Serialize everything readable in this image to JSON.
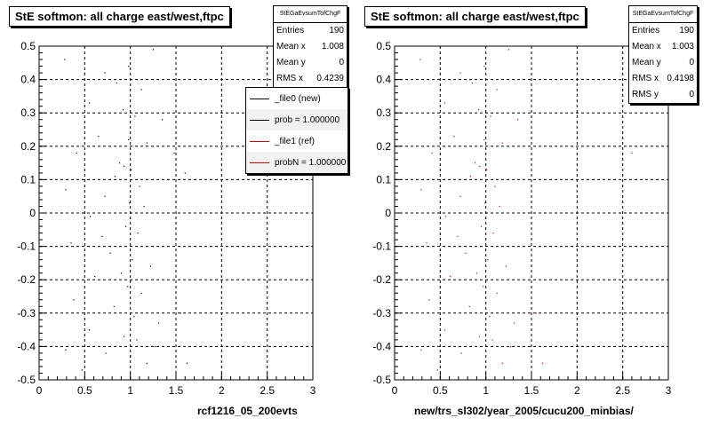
{
  "footer_text": "",
  "chart_data": [
    {
      "type": "scatter",
      "title": "StE softmon: all charge east/west,ftpc",
      "xlabel": "rcf1216_05_200evts",
      "ylabel": "",
      "xlim": [
        0,
        3
      ],
      "ylim": [
        -0.5,
        0.5
      ],
      "grid": true,
      "x_ticks": [
        "0",
        "0.5",
        "1",
        "1.5",
        "2",
        "2.5",
        "3"
      ],
      "y_ticks": [
        "-0.5",
        "-0.4",
        "-0.3",
        "-0.2",
        "-0.1",
        "0",
        "0.1",
        "0.2",
        "0.3",
        "0.4",
        "0.5"
      ],
      "stats": {
        "name": "StEGaEvsumTofChgF",
        "rows": [
          {
            "label": "Entries",
            "value": "190"
          },
          {
            "label": "Mean x",
            "value": "1.008"
          },
          {
            "label": "Mean y",
            "value": "0"
          },
          {
            "label": "RMS x",
            "value": "0.4239"
          }
        ]
      },
      "legend": {
        "placement": "top-right",
        "entries": [
          {
            "label": "_file0 (new)",
            "color": "#000000"
          },
          {
            "label": "prob = 1.000000",
            "color": "#000000"
          },
          {
            "label": "_file1 (ref)",
            "color": "#cc0000"
          },
          {
            "label": "probN = 1.000000",
            "color": "#cc0000"
          }
        ]
      },
      "series": [
        {
          "color": "#000000",
          "points": [
            [
              0.28,
              0.46
            ],
            [
              0.72,
              0.42
            ],
            [
              0.98,
              0.44
            ],
            [
              1.25,
              0.49
            ],
            [
              0.85,
              0.39
            ],
            [
              1.12,
              0.37
            ],
            [
              0.55,
              0.33
            ],
            [
              0.92,
              0.31
            ],
            [
              1.05,
              0.29
            ],
            [
              1.35,
              0.28
            ],
            [
              0.65,
              0.23
            ],
            [
              0.98,
              0.22
            ],
            [
              1.18,
              0.21
            ],
            [
              0.41,
              0.18
            ],
            [
              0.88,
              0.15
            ],
            [
              0.93,
              0.14
            ],
            [
              1.01,
              0.13
            ],
            [
              0.83,
              0.11
            ],
            [
              1.41,
              0.1
            ],
            [
              0.29,
              0.07
            ],
            [
              0.72,
              0.05
            ],
            [
              0.99,
              0.03
            ],
            [
              1.15,
              0.02
            ],
            [
              0.56,
              -0.01
            ],
            [
              0.95,
              -0.04
            ],
            [
              1.08,
              -0.06
            ],
            [
              0.35,
              -0.09
            ],
            [
              0.78,
              -0.12
            ],
            [
              1.02,
              -0.14
            ],
            [
              1.22,
              -0.16
            ],
            [
              0.61,
              -0.19
            ],
            [
              0.97,
              -0.22
            ],
            [
              1.12,
              -0.24
            ],
            [
              0.38,
              -0.26
            ],
            [
              0.82,
              -0.28
            ],
            [
              1.04,
              -0.31
            ],
            [
              1.31,
              -0.33
            ],
            [
              0.55,
              -0.35
            ],
            [
              0.93,
              -0.37
            ],
            [
              1.07,
              -0.38
            ],
            [
              0.29,
              -0.41
            ],
            [
              0.73,
              -0.42
            ],
            [
              1.0,
              -0.43
            ],
            [
              1.18,
              -0.45
            ],
            [
              0.47,
              -0.47
            ],
            [
              1.62,
              -0.45
            ],
            [
              1.55,
              -0.3
            ],
            [
              1.48,
              0.18
            ],
            [
              1.6,
              0.12
            ],
            [
              0.69,
              -0.07
            ],
            [
              1.1,
              0.08
            ],
            [
              0.9,
              -0.18
            ],
            [
              1.27,
              -0.4
            ],
            [
              0.5,
              0.42
            ]
          ]
        }
      ]
    },
    {
      "type": "scatter",
      "title": "StE softmon: all charge east/west,ftpc",
      "xlabel": "new/trs_sl302/year_2005/cucu200_minbias/",
      "ylabel": "",
      "xlim": [
        0,
        3
      ],
      "ylim": [
        -0.5,
        0.5
      ],
      "grid": true,
      "x_ticks": [
        "0",
        "0.5",
        "1",
        "1.5",
        "2",
        "2.5",
        "3"
      ],
      "y_ticks": [
        "-0.5",
        "-0.4",
        "-0.3",
        "-0.2",
        "-0.1",
        "0",
        "0.1",
        "0.2",
        "0.3",
        "0.4",
        "0.5"
      ],
      "stats": {
        "name": "StEGaEvsumTofChgF",
        "rows": [
          {
            "label": "Entries",
            "value": "190"
          },
          {
            "label": "Mean x",
            "value": "1.003"
          },
          {
            "label": "Mean y",
            "value": "0"
          },
          {
            "label": "RMS x",
            "value": "0.4198"
          },
          {
            "label": "RMS y",
            "value": "0"
          }
        ]
      },
      "series": [
        {
          "color": "#cc0000",
          "points": [
            [
              0.28,
              0.46
            ],
            [
              0.72,
              0.42
            ],
            [
              0.98,
              0.44
            ],
            [
              1.25,
              0.49
            ],
            [
              0.85,
              0.39
            ],
            [
              1.12,
              0.37
            ],
            [
              0.55,
              0.33
            ],
            [
              0.92,
              0.31
            ],
            [
              1.05,
              0.29
            ],
            [
              1.35,
              0.28
            ],
            [
              0.65,
              0.23
            ],
            [
              0.98,
              0.22
            ],
            [
              1.18,
              0.21
            ],
            [
              0.41,
              0.18
            ],
            [
              0.88,
              0.15
            ],
            [
              0.93,
              0.14
            ],
            [
              1.01,
              0.13
            ],
            [
              0.83,
              0.11
            ],
            [
              1.41,
              0.1
            ],
            [
              0.29,
              0.07
            ],
            [
              0.72,
              0.05
            ],
            [
              0.99,
              0.03
            ],
            [
              1.15,
              0.02
            ],
            [
              0.56,
              -0.01
            ],
            [
              0.95,
              -0.04
            ],
            [
              1.08,
              -0.06
            ],
            [
              0.35,
              -0.09
            ],
            [
              0.78,
              -0.12
            ],
            [
              1.02,
              -0.14
            ],
            [
              1.22,
              -0.16
            ],
            [
              0.61,
              -0.19
            ],
            [
              0.97,
              -0.22
            ],
            [
              1.12,
              -0.24
            ],
            [
              0.38,
              -0.26
            ],
            [
              0.82,
              -0.28
            ],
            [
              1.04,
              -0.31
            ],
            [
              1.31,
              -0.33
            ],
            [
              0.55,
              -0.35
            ],
            [
              0.93,
              -0.37
            ],
            [
              1.07,
              -0.38
            ],
            [
              0.29,
              -0.41
            ],
            [
              0.73,
              -0.42
            ],
            [
              1.0,
              -0.43
            ],
            [
              1.18,
              -0.45
            ],
            [
              0.47,
              -0.47
            ],
            [
              1.62,
              -0.45
            ],
            [
              1.55,
              -0.3
            ],
            [
              2.6,
              0.18
            ],
            [
              2.35,
              0.2
            ],
            [
              0.69,
              -0.07
            ],
            [
              1.1,
              0.08
            ],
            [
              0.9,
              -0.18
            ],
            [
              1.27,
              -0.4
            ],
            [
              0.5,
              0.42
            ]
          ]
        }
      ]
    }
  ]
}
